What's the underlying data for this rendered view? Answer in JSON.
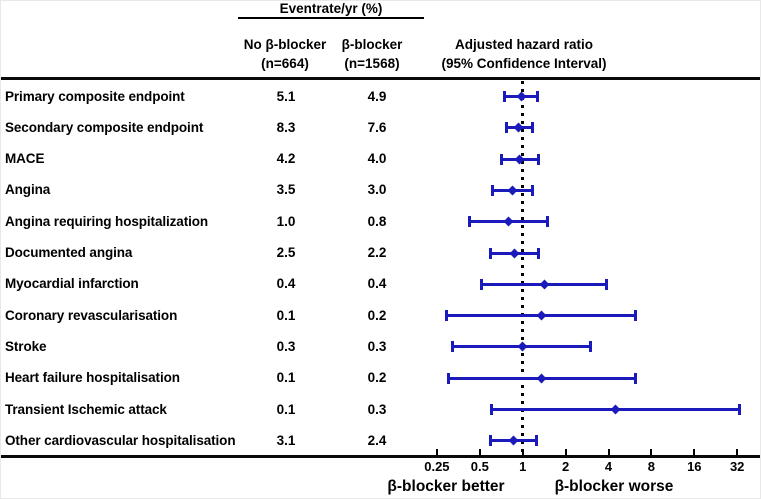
{
  "figure": {
    "group_header": "Eventrate/yr (%)",
    "columns": {
      "no_bblocker": {
        "line1": "No β-blocker",
        "line2": "(n=664)"
      },
      "bblocker": {
        "line1": "β-blocker",
        "line2": "(n=1568)"
      },
      "hazard": {
        "line1": "Adjusted hazard ratio",
        "line2": "(95% Confidence Interval)"
      }
    },
    "footer": {
      "left": "β-blocker better",
      "right": "β-blocker worse"
    }
  },
  "chart_data": {
    "type": "forest",
    "title": "Eventrate/yr (%)",
    "column_headers": [
      "No β-blocker (n=664)",
      "β-blocker (n=1568)",
      "Adjusted hazard ratio (95% Confidence Interval)"
    ],
    "x_axis": {
      "scale": "log2",
      "ticks": [
        0.25,
        0.5,
        1,
        2,
        4,
        8,
        16,
        32
      ],
      "range": [
        0.2,
        40
      ],
      "reference_line": 1,
      "label_left": "β-blocker better",
      "label_right": "β-blocker worse"
    },
    "rows": [
      {
        "label": "Primary composite endpoint",
        "rate_no_bblocker": "5.1",
        "rate_bblocker": "4.9",
        "hr": 0.98,
        "ci_low": 0.74,
        "ci_high": 1.28
      },
      {
        "label": "Secondary composite endpoint",
        "rate_no_bblocker": "8.3",
        "rate_bblocker": "7.6",
        "hr": 0.94,
        "ci_low": 0.76,
        "ci_high": 1.19
      },
      {
        "label": "MACE",
        "rate_no_bblocker": "4.2",
        "rate_bblocker": "4.0",
        "hr": 0.95,
        "ci_low": 0.7,
        "ci_high": 1.3
      },
      {
        "label": "Angina",
        "rate_no_bblocker": "3.5",
        "rate_bblocker": "3.0",
        "hr": 0.85,
        "ci_low": 0.61,
        "ci_high": 1.19
      },
      {
        "label": "Angina requiring hospitalization",
        "rate_no_bblocker": "1.0",
        "rate_bblocker": "0.8",
        "hr": 0.8,
        "ci_low": 0.42,
        "ci_high": 1.5
      },
      {
        "label": "Documented angina",
        "rate_no_bblocker": "2.5",
        "rate_bblocker": "2.2",
        "hr": 0.88,
        "ci_low": 0.59,
        "ci_high": 1.3
      },
      {
        "label": "Myocardial infarction",
        "rate_no_bblocker": "0.4",
        "rate_bblocker": "0.4",
        "hr": 1.43,
        "ci_low": 0.51,
        "ci_high": 3.9
      },
      {
        "label": "Coronary revascularisation",
        "rate_no_bblocker": "0.1",
        "rate_bblocker": "0.2",
        "hr": 1.36,
        "ci_low": 0.29,
        "ci_high": 6.25
      },
      {
        "label": "Stroke",
        "rate_no_bblocker": "0.3",
        "rate_bblocker": "0.3",
        "hr": 0.99,
        "ci_low": 0.32,
        "ci_high": 3.0
      },
      {
        "label": "Heart failure hospitalisation",
        "rate_no_bblocker": "0.1",
        "rate_bblocker": "0.2",
        "hr": 1.36,
        "ci_low": 0.3,
        "ci_high": 6.2
      },
      {
        "label": "Transient Ischemic attack",
        "rate_no_bblocker": "0.1",
        "rate_bblocker": "0.3",
        "hr": 4.5,
        "ci_low": 0.6,
        "ci_high": 33.5
      },
      {
        "label": "Other cardiovascular hospitalisation",
        "rate_no_bblocker": "3.1",
        "rate_bblocker": "2.4",
        "hr": 0.86,
        "ci_low": 0.59,
        "ci_high": 1.25
      }
    ],
    "colors": {
      "marker": "#1b1bbb",
      "axis": "#000000",
      "reference": "#000000"
    }
  }
}
